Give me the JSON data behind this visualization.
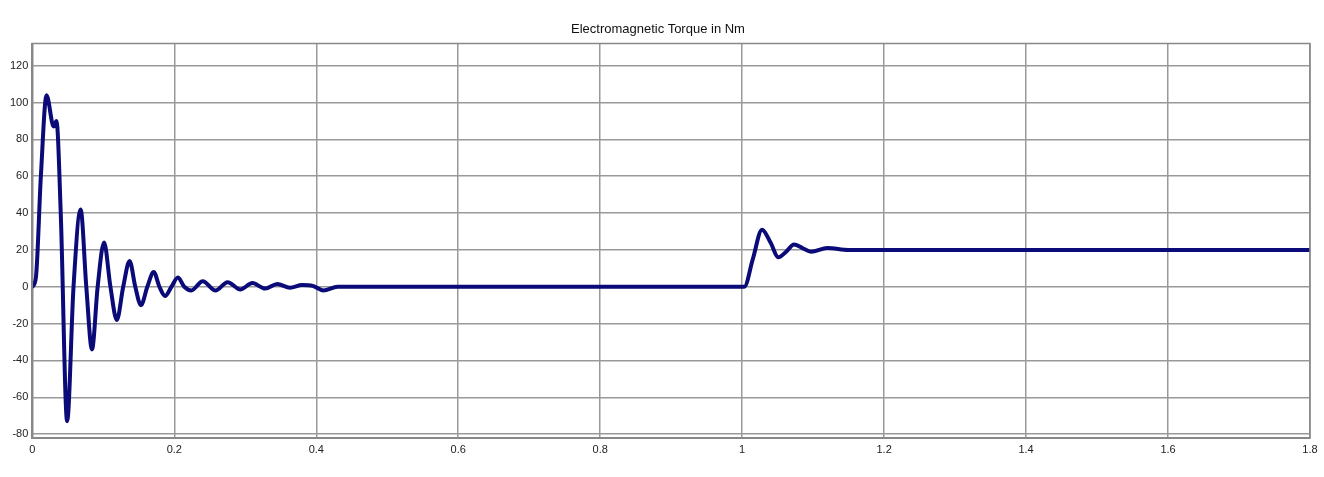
{
  "chart_data": {
    "type": "line",
    "title": "Electromagnetic Torque in Nm",
    "series": [
      {
        "color": "#0a0a78",
        "x": [
          0,
          0.005,
          0.012,
          0.02,
          0.03,
          0.034,
          0.04,
          0.049,
          0.058,
          0.068,
          0.076,
          0.084,
          0.092,
          0.101,
          0.11,
          0.119,
          0.128,
          0.137,
          0.145,
          0.153,
          0.162,
          0.171,
          0.179,
          0.187,
          0.196,
          0.205,
          0.214,
          0.224,
          0.24,
          0.258,
          0.275,
          0.293,
          0.31,
          0.328,
          0.345,
          0.363,
          0.38,
          0.395,
          0.41,
          0.43,
          0.5,
          0.7,
          0.9,
          1.003,
          1.015,
          1.028,
          1.04,
          1.051,
          1.062,
          1.073,
          1.085,
          1.097,
          1.12,
          1.15,
          1.3,
          1.5,
          1.7,
          1.8
        ],
        "values": [
          0,
          5,
          60,
          104,
          87,
          90,
          40,
          -73,
          0,
          42,
          0,
          -34,
          0,
          24,
          0,
          -18,
          0,
          14,
          0,
          -10,
          0,
          8,
          0,
          -5,
          0,
          5,
          0,
          -2,
          3,
          -2,
          2.5,
          -1.5,
          2,
          -1,
          1.5,
          -0.5,
          1,
          0.5,
          -2,
          0,
          0,
          0,
          0,
          0,
          15,
          31,
          24,
          16,
          19,
          23,
          21,
          19,
          21,
          20,
          20,
          20,
          20,
          20
        ]
      }
    ],
    "xlim": [
      0,
      1.8
    ],
    "xticks": [
      0,
      0.2,
      0.4,
      0.6,
      0.8,
      1,
      1.2,
      1.4,
      1.6,
      1.8
    ],
    "ylim": [
      -82,
      132
    ],
    "yticks": [
      -80,
      -60,
      -40,
      -20,
      0,
      20,
      40,
      60,
      80,
      100,
      120
    ],
    "grid": true,
    "legend": false,
    "marker": "none",
    "line_style": "solid"
  }
}
